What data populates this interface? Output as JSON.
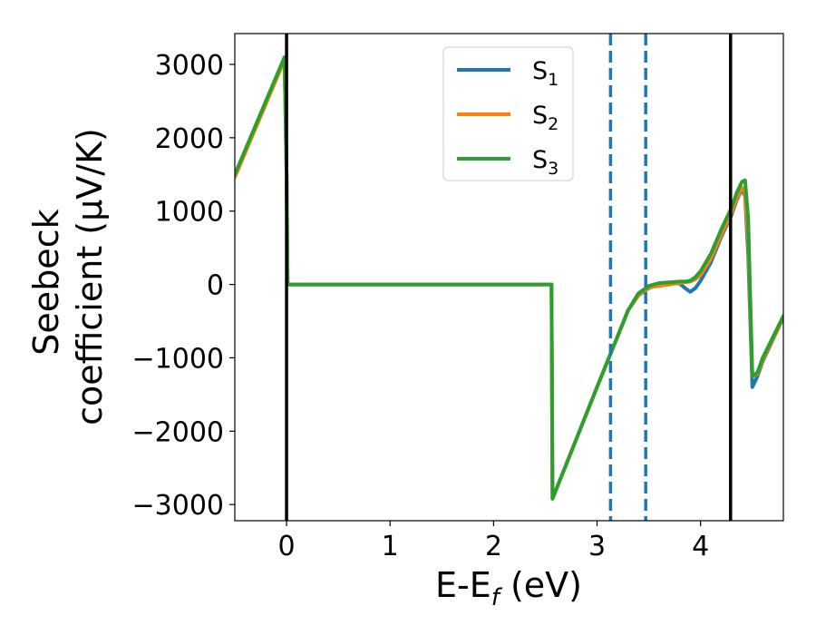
{
  "chart_data": {
    "type": "line",
    "xlabel": {
      "base": "E-E",
      "sub": "f",
      "tail": " (eV)"
    },
    "ylabel_lines": [
      "Seebeck",
      "coefficient  (μV/K)"
    ],
    "xlim": [
      -0.5,
      4.8
    ],
    "ylim": [
      -3220,
      3420
    ],
    "xticks": [
      0,
      1,
      2,
      3,
      4
    ],
    "yticks": [
      -3000,
      -2000,
      -1000,
      0,
      1000,
      2000,
      3000
    ],
    "ytick_labels": [
      "−3000",
      "−2000",
      "−1000",
      "0",
      "1000",
      "2000",
      "3000"
    ],
    "grid": false,
    "legend_position": "top-center",
    "vlines_solid": [
      0.0,
      4.29
    ],
    "vlines_dashed": [
      3.13,
      3.47
    ],
    "colors": {
      "vline_solid": "#000000",
      "vline_dashed": "#1f77b4"
    },
    "series": [
      {
        "name": {
          "base": "S",
          "sub": "1"
        },
        "color": "#1f77b4",
        "x": [
          -0.5,
          -0.02,
          0.0,
          0.01,
          2.56,
          2.57,
          3.0,
          3.2,
          3.3,
          3.4,
          3.5,
          3.6,
          3.7,
          3.8,
          3.85,
          3.9,
          3.95,
          4.0,
          4.1,
          4.2,
          4.3,
          4.35,
          4.4,
          4.43,
          4.46,
          4.5,
          4.55,
          4.6,
          4.8
        ],
        "y": [
          1480,
          3080,
          1500,
          0,
          0,
          -2920,
          -1400,
          -700,
          -350,
          -150,
          -50,
          0,
          20,
          10,
          -50,
          -100,
          -50,
          50,
          300,
          650,
          950,
          1150,
          1300,
          1200,
          400,
          -1400,
          -1250,
          -1050,
          -450
        ]
      },
      {
        "name": {
          "base": "S",
          "sub": "2"
        },
        "color": "#ff7f0e",
        "x": [
          -0.5,
          -0.02,
          0.0,
          0.01,
          2.56,
          2.57,
          3.0,
          3.2,
          3.3,
          3.4,
          3.5,
          3.6,
          3.7,
          3.8,
          3.85,
          3.9,
          3.95,
          4.0,
          4.1,
          4.2,
          4.3,
          4.35,
          4.4,
          4.43,
          4.46,
          4.5,
          4.55,
          4.6,
          4.8
        ],
        "y": [
          1460,
          3060,
          1500,
          0,
          0,
          -2920,
          -1400,
          -700,
          -350,
          -150,
          -40,
          -20,
          0,
          20,
          30,
          40,
          70,
          130,
          350,
          680,
          980,
          1170,
          1320,
          1250,
          600,
          -1250,
          -1220,
          -1030,
          -450
        ]
      },
      {
        "name": {
          "base": "S",
          "sub": "3"
        },
        "color": "#2ca02c",
        "x": [
          -0.5,
          -0.02,
          0.0,
          0.01,
          2.56,
          2.57,
          3.0,
          3.2,
          3.3,
          3.4,
          3.5,
          3.6,
          3.7,
          3.8,
          3.85,
          3.9,
          3.95,
          4.0,
          4.1,
          4.2,
          4.3,
          4.35,
          4.4,
          4.43,
          4.46,
          4.5,
          4.55,
          4.6,
          4.8
        ],
        "y": [
          1500,
          3100,
          1500,
          0,
          0,
          -2920,
          -1400,
          -700,
          -350,
          -120,
          -20,
          20,
          30,
          40,
          40,
          50,
          100,
          180,
          420,
          750,
          1050,
          1250,
          1400,
          1420,
          900,
          -1250,
          -1200,
          -1000,
          -430
        ]
      }
    ]
  }
}
